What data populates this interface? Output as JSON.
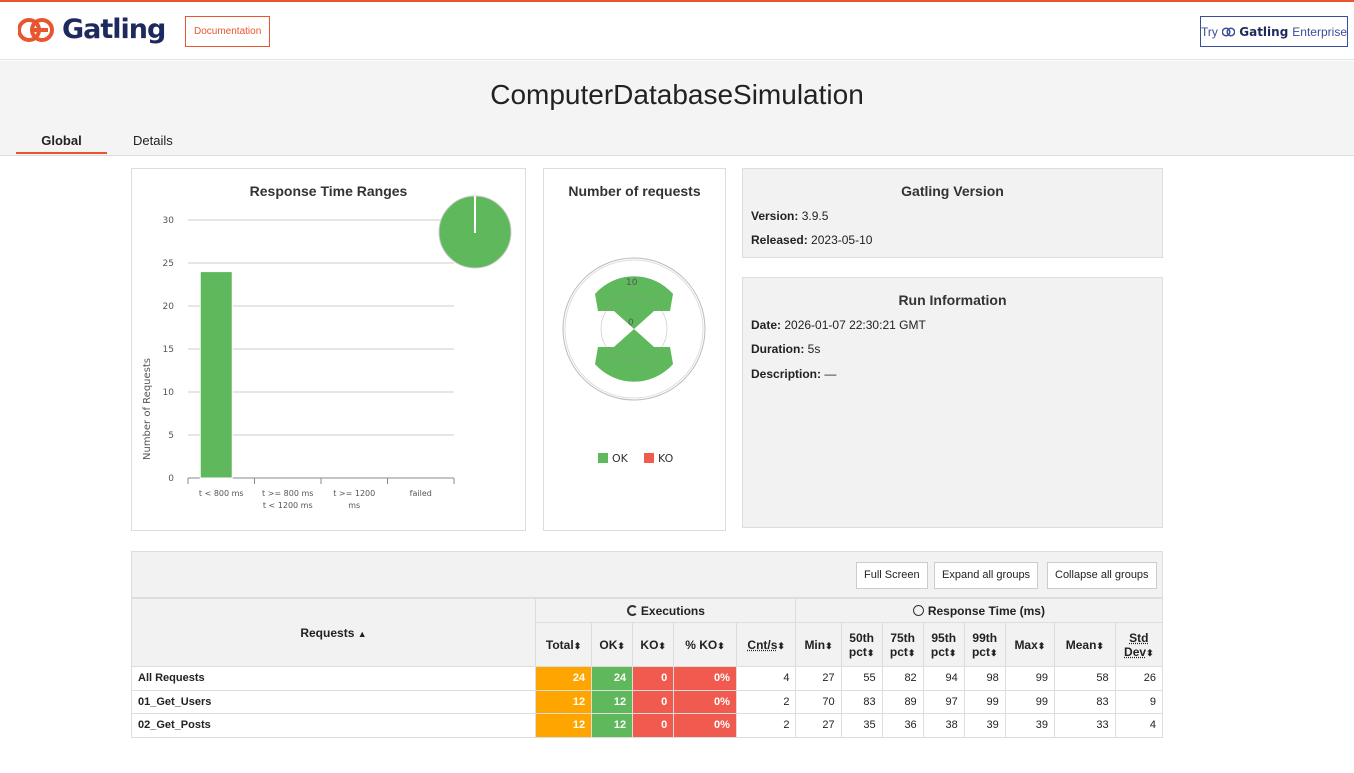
{
  "header": {
    "logo_text": "Gatling",
    "documentation_label": "Documentation",
    "try_prefix": "Try",
    "try_brand": "Gatling",
    "try_suffix": "Enterprise"
  },
  "simulation_title": "ComputerDatabaseSimulation",
  "tabs": [
    {
      "label": "Global"
    },
    {
      "label": "Details"
    }
  ],
  "colors": {
    "accent": "#e8552f",
    "ok": "#5fb85c",
    "ko": "#f15b4f",
    "total": "#ffa500",
    "brand": "#1e2a5e"
  },
  "response_time_ranges": {
    "title": "Response Time Ranges",
    "ylabel": "Number of Requests"
  },
  "number_of_requests": {
    "title": "Number of requests",
    "legend": {
      "ok": "OK",
      "ko": "KO"
    }
  },
  "gatling_version": {
    "title": "Gatling Version",
    "version_label": "Version:",
    "version": "3.9.5",
    "released_label": "Released:",
    "released": "2023-05-10"
  },
  "run_information": {
    "title": "Run Information",
    "date_label": "Date:",
    "date": "2026-01-07 22:30:21 GMT",
    "duration_label": "Duration:",
    "duration": "5s",
    "description_label": "Description:",
    "description": "—"
  },
  "stats_toolbar": {
    "full_screen": "Full Screen",
    "expand": "Expand all groups",
    "collapse": "Collapse all groups"
  },
  "stats_table": {
    "requests_header": "Requests",
    "executions_header": "Executions",
    "response_time_header": "Response Time (ms)",
    "columns": {
      "total": "Total",
      "ok": "OK",
      "ko": "KO",
      "pct_ko": "% KO",
      "cnt": "Cnt/s",
      "min": "Min",
      "p50a": "50th",
      "p50b": "pct",
      "p75a": "75th",
      "p75b": "pct",
      "p95a": "95th",
      "p95b": "pct",
      "p99a": "99th",
      "p99b": "pct",
      "max": "Max",
      "mean": "Mean",
      "stda": "Std",
      "stdb": "Dev"
    },
    "rows": [
      {
        "name": "All Requests",
        "total": "24",
        "ok": "24",
        "ko": "0",
        "pct_ko": "0%",
        "cnt": "4",
        "min": "27",
        "p50": "55",
        "p75": "82",
        "p95": "94",
        "p99": "98",
        "max": "99",
        "mean": "58",
        "std": "26"
      },
      {
        "name": "01_Get_Users",
        "total": "12",
        "ok": "12",
        "ko": "0",
        "pct_ko": "0%",
        "cnt": "2",
        "min": "70",
        "p50": "83",
        "p75": "89",
        "p95": "97",
        "p99": "99",
        "max": "99",
        "mean": "83",
        "std": "9"
      },
      {
        "name": "02_Get_Posts",
        "total": "12",
        "ok": "12",
        "ko": "0",
        "pct_ko": "0%",
        "cnt": "2",
        "min": "27",
        "p50": "35",
        "p75": "36",
        "p95": "38",
        "p99": "39",
        "max": "39",
        "mean": "33",
        "std": "4"
      }
    ]
  },
  "chart_data": [
    {
      "type": "bar",
      "title": "Response Time Ranges",
      "xlabel": "",
      "ylabel": "Number of Requests",
      "categories": [
        "t < 800 ms",
        "t >= 800 ms t < 1200 ms",
        "t >= 1200 ms",
        "failed"
      ],
      "category_lines": [
        [
          "t < 800 ms"
        ],
        [
          "t >= 800 ms",
          "t < 1200 ms"
        ],
        [
          "t >= 1200",
          "ms"
        ],
        [
          "failed"
        ]
      ],
      "values": [
        24,
        0,
        0,
        0
      ],
      "yticks": [
        0,
        5,
        10,
        15,
        20,
        25,
        30
      ],
      "ylim": [
        0,
        30
      ],
      "grid": true
    },
    {
      "type": "polar-area",
      "title": "Number of requests",
      "categories": [
        "OK",
        "KO"
      ],
      "values": [
        24,
        0
      ],
      "ticks": [
        "0",
        "10"
      ]
    }
  ]
}
